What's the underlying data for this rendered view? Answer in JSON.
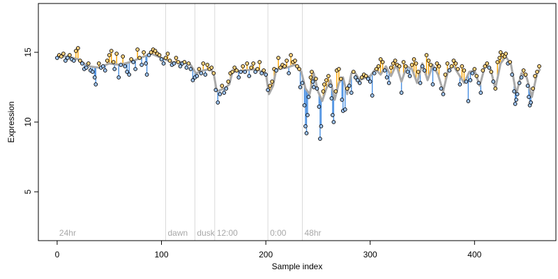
{
  "chart_data": {
    "type": "scatter",
    "title": "",
    "xlabel": "Sample index",
    "ylabel": "Expression",
    "xlim": [
      -18,
      478
    ],
    "ylim": [
      1.5,
      18.5
    ],
    "x_ticks": [
      0,
      100,
      200,
      300,
      400
    ],
    "y_ticks": [
      5,
      10,
      15
    ],
    "grid": false,
    "legend": "none",
    "colors": {
      "above_fit": "#ffa500",
      "below_fit": "#4a90e2",
      "fit_line": "#a9a9a9",
      "point_fill_above": "#ffd27f",
      "point_fill_below": "#9ec3f0",
      "point_edge": "#000000",
      "marker_line": "#d9d9d9",
      "marker_text": "#a8a8a8"
    },
    "markers": [
      {
        "x": 0,
        "label": "24hr",
        "line": false
      },
      {
        "x": 104,
        "label": "dawn",
        "line": true
      },
      {
        "x": 132,
        "label": "dusk",
        "line": true
      },
      {
        "x": 151,
        "label": "12:00",
        "line": true
      },
      {
        "x": 202,
        "label": "0:00",
        "line": true
      },
      {
        "x": 235,
        "label": "48hr",
        "line": true
      }
    ],
    "fit": [
      [
        0,
        14.7
      ],
      [
        10,
        14.7
      ],
      [
        20,
        14.5
      ],
      [
        30,
        14.0
      ],
      [
        40,
        13.9
      ],
      [
        50,
        14.2
      ],
      [
        60,
        14.1
      ],
      [
        70,
        14.3
      ],
      [
        80,
        14.6
      ],
      [
        90,
        14.9
      ],
      [
        100,
        14.6
      ],
      [
        110,
        14.3
      ],
      [
        120,
        14.3
      ],
      [
        128,
        14.1
      ],
      [
        133,
        13.5
      ],
      [
        140,
        13.7
      ],
      [
        147,
        13.8
      ],
      [
        150,
        13.5
      ],
      [
        153,
        12.2
      ],
      [
        160,
        12.4
      ],
      [
        165,
        12.7
      ],
      [
        168,
        13.6
      ],
      [
        180,
        13.7
      ],
      [
        190,
        13.8
      ],
      [
        200,
        13.5
      ],
      [
        203,
        12.0
      ],
      [
        207,
        12.6
      ],
      [
        210,
        13.8
      ],
      [
        220,
        13.9
      ],
      [
        228,
        14.1
      ],
      [
        234,
        13.6
      ],
      [
        238,
        12.4
      ],
      [
        242,
        12.0
      ],
      [
        246,
        13.5
      ],
      [
        250,
        12.2
      ],
      [
        254,
        11.5
      ],
      [
        258,
        12.4
      ],
      [
        262,
        13.0
      ],
      [
        266,
        11.6
      ],
      [
        270,
        12.8
      ],
      [
        274,
        13.2
      ],
      [
        278,
        12.0
      ],
      [
        282,
        13.5
      ],
      [
        285,
        13.6
      ],
      [
        290,
        13.0
      ],
      [
        296,
        13.2
      ],
      [
        300,
        13.3
      ],
      [
        305,
        13.8
      ],
      [
        310,
        13.4
      ],
      [
        315,
        14.0
      ],
      [
        320,
        13.3
      ],
      [
        325,
        14.1
      ],
      [
        330,
        12.9
      ],
      [
        335,
        14.0
      ],
      [
        340,
        13.8
      ],
      [
        345,
        12.8
      ],
      [
        350,
        14.2
      ],
      [
        355,
        13.0
      ],
      [
        360,
        14.1
      ],
      [
        365,
        13.4
      ],
      [
        370,
        12.2
      ],
      [
        375,
        13.8
      ],
      [
        380,
        14.0
      ],
      [
        385,
        13.4
      ],
      [
        390,
        12.8
      ],
      [
        395,
        13.6
      ],
      [
        400,
        13.7
      ],
      [
        405,
        12.6
      ],
      [
        410,
        14.0
      ],
      [
        415,
        13.9
      ],
      [
        420,
        12.4
      ],
      [
        425,
        14.2
      ],
      [
        430,
        14.7
      ],
      [
        435,
        14.1
      ],
      [
        440,
        12.0
      ],
      [
        445,
        13.5
      ],
      [
        450,
        13.2
      ],
      [
        455,
        11.8
      ],
      [
        460,
        13.5
      ],
      [
        463,
        13.8
      ]
    ],
    "points": [
      [
        0,
        14.6
      ],
      [
        2,
        14.8
      ],
      [
        4,
        14.7
      ],
      [
        6,
        14.9
      ],
      [
        8,
        14.4
      ],
      [
        10,
        14.6
      ],
      [
        12,
        14.8
      ],
      [
        14,
        14.5
      ],
      [
        16,
        14.4
      ],
      [
        18,
        15.1
      ],
      [
        20,
        15.3
      ],
      [
        22,
        14.4
      ],
      [
        24,
        14.2
      ],
      [
        26,
        13.8
      ],
      [
        28,
        13.9
      ],
      [
        30,
        14.2
      ],
      [
        32,
        13.7
      ],
      [
        34,
        13.6
      ],
      [
        36,
        13.2
      ],
      [
        37,
        12.7
      ],
      [
        40,
        14.2
      ],
      [
        42,
        13.9
      ],
      [
        44,
        14.0
      ],
      [
        46,
        13.7
      ],
      [
        48,
        14.4
      ],
      [
        50,
        14.8
      ],
      [
        52,
        15.1
      ],
      [
        54,
        14.3
      ],
      [
        55,
        13.8
      ],
      [
        57,
        14.9
      ],
      [
        59,
        13.2
      ],
      [
        61,
        14.1
      ],
      [
        63,
        14.7
      ],
      [
        65,
        14.0
      ],
      [
        67,
        13.6
      ],
      [
        69,
        13.4
      ],
      [
        71,
        14.5
      ],
      [
        73,
        14.3
      ],
      [
        75,
        13.8
      ],
      [
        77,
        15.2
      ],
      [
        79,
        14.6
      ],
      [
        81,
        14.1
      ],
      [
        83,
        15.0
      ],
      [
        85,
        14.2
      ],
      [
        86,
        13.4
      ],
      [
        88,
        14.8
      ],
      [
        90,
        15.0
      ],
      [
        92,
        15.2
      ],
      [
        94,
        15.1
      ],
      [
        96,
        14.9
      ],
      [
        98,
        14.8
      ],
      [
        100,
        14.5
      ],
      [
        102,
        14.2
      ],
      [
        104,
        14.6
      ],
      [
        106,
        14.9
      ],
      [
        108,
        14.4
      ],
      [
        110,
        14.1
      ],
      [
        112,
        14.2
      ],
      [
        114,
        14.6
      ],
      [
        116,
        14.3
      ],
      [
        118,
        14.0
      ],
      [
        120,
        14.2
      ],
      [
        122,
        14.3
      ],
      [
        124,
        13.9
      ],
      [
        126,
        14.2
      ],
      [
        128,
        13.8
      ],
      [
        130,
        13.0
      ],
      [
        132,
        13.2
      ],
      [
        134,
        13.3
      ],
      [
        136,
        13.8
      ],
      [
        138,
        13.5
      ],
      [
        140,
        14.2
      ],
      [
        142,
        13.4
      ],
      [
        144,
        14.1
      ],
      [
        146,
        13.8
      ],
      [
        148,
        13.9
      ],
      [
        150,
        13.5
      ],
      [
        152,
        12.3
      ],
      [
        154,
        11.4
      ],
      [
        156,
        12.0
      ],
      [
        158,
        12.6
      ],
      [
        160,
        12.1
      ],
      [
        162,
        12.4
      ],
      [
        164,
        12.9
      ],
      [
        166,
        13.5
      ],
      [
        168,
        13.6
      ],
      [
        170,
        13.9
      ],
      [
        172,
        13.7
      ],
      [
        174,
        13.2
      ],
      [
        176,
        13.6
      ],
      [
        178,
        14.0
      ],
      [
        180,
        13.6
      ],
      [
        182,
        14.2
      ],
      [
        184,
        13.3
      ],
      [
        186,
        13.9
      ],
      [
        188,
        14.2
      ],
      [
        190,
        13.6
      ],
      [
        192,
        13.8
      ],
      [
        194,
        14.3
      ],
      [
        196,
        13.5
      ],
      [
        198,
        13.7
      ],
      [
        200,
        13.4
      ],
      [
        202,
        12.3
      ],
      [
        204,
        12.6
      ],
      [
        206,
        12.9
      ],
      [
        208,
        13.8
      ],
      [
        210,
        13.7
      ],
      [
        212,
        14.6
      ],
      [
        214,
        13.9
      ],
      [
        216,
        14.1
      ],
      [
        218,
        14.0
      ],
      [
        220,
        14.4
      ],
      [
        222,
        13.5
      ],
      [
        224,
        14.8
      ],
      [
        226,
        14.3
      ],
      [
        228,
        14.4
      ],
      [
        230,
        14.0
      ],
      [
        232,
        13.8
      ],
      [
        233,
        12.5
      ],
      [
        235,
        12.8
      ],
      [
        237,
        11.2
      ],
      [
        238,
        9.7
      ],
      [
        239,
        9.2
      ],
      [
        240,
        10.5
      ],
      [
        241,
        11.8
      ],
      [
        243,
        13.2
      ],
      [
        244,
        13.6
      ],
      [
        245,
        12.9
      ],
      [
        246,
        12.5
      ],
      [
        248,
        13.1
      ],
      [
        249,
        12.4
      ],
      [
        251,
        11.1
      ],
      [
        252,
        8.8
      ],
      [
        253,
        9.7
      ],
      [
        255,
        12.2
      ],
      [
        256,
        12.7
      ],
      [
        258,
        13.0
      ],
      [
        260,
        13.3
      ],
      [
        262,
        12.6
      ],
      [
        263,
        11.7
      ],
      [
        264,
        10.5
      ],
      [
        265,
        10.0
      ],
      [
        267,
        12.2
      ],
      [
        268,
        13.7
      ],
      [
        270,
        13.8
      ],
      [
        272,
        13.1
      ],
      [
        273,
        11.6
      ],
      [
        274,
        10.8
      ],
      [
        276,
        10.9
      ],
      [
        278,
        12.4
      ],
      [
        280,
        12.6
      ],
      [
        282,
        12.1
      ],
      [
        284,
        13.6
      ],
      [
        286,
        13.2
      ],
      [
        288,
        13.0
      ],
      [
        290,
        12.8
      ],
      [
        292,
        13.2
      ],
      [
        294,
        13.4
      ],
      [
        296,
        13.3
      ],
      [
        298,
        13.1
      ],
      [
        300,
        12.9
      ],
      [
        302,
        11.9
      ],
      [
        304,
        13.5
      ],
      [
        306,
        13.8
      ],
      [
        308,
        14.0
      ],
      [
        310,
        14.5
      ],
      [
        312,
        14.3
      ],
      [
        314,
        13.7
      ],
      [
        316,
        13.2
      ],
      [
        318,
        12.8
      ],
      [
        320,
        13.9
      ],
      [
        322,
        14.2
      ],
      [
        324,
        14.4
      ],
      [
        326,
        14.1
      ],
      [
        328,
        14.0
      ],
      [
        330,
        12.1
      ],
      [
        332,
        14.3
      ],
      [
        334,
        14.0
      ],
      [
        336,
        13.6
      ],
      [
        338,
        13.3
      ],
      [
        340,
        14.1
      ],
      [
        342,
        14.5
      ],
      [
        344,
        14.2
      ],
      [
        346,
        13.6
      ],
      [
        348,
        12.8
      ],
      [
        350,
        14.0
      ],
      [
        352,
        13.7
      ],
      [
        354,
        14.8
      ],
      [
        356,
        14.4
      ],
      [
        358,
        14.1
      ],
      [
        360,
        12.7
      ],
      [
        362,
        13.8
      ],
      [
        364,
        14.2
      ],
      [
        366,
        14.0
      ],
      [
        368,
        12.4
      ],
      [
        370,
        12.0
      ],
      [
        372,
        13.4
      ],
      [
        374,
        14.2
      ],
      [
        376,
        13.7
      ],
      [
        378,
        14.0
      ],
      [
        380,
        14.4
      ],
      [
        382,
        14.2
      ],
      [
        384,
        13.8
      ],
      [
        386,
        12.7
      ],
      [
        388,
        14.0
      ],
      [
        390,
        13.7
      ],
      [
        392,
        12.9
      ],
      [
        394,
        11.5
      ],
      [
        396,
        13.0
      ],
      [
        398,
        13.5
      ],
      [
        400,
        13.8
      ],
      [
        402,
        13.3
      ],
      [
        404,
        12.8
      ],
      [
        406,
        12.1
      ],
      [
        408,
        13.7
      ],
      [
        410,
        14.0
      ],
      [
        412,
        14.2
      ],
      [
        414,
        13.9
      ],
      [
        416,
        13.6
      ],
      [
        418,
        12.9
      ],
      [
        420,
        12.4
      ],
      [
        422,
        14.3
      ],
      [
        424,
        14.6
      ],
      [
        425,
        15.0
      ],
      [
        427,
        14.8
      ],
      [
        429,
        14.7
      ],
      [
        430,
        14.9
      ],
      [
        432,
        14.2
      ],
      [
        434,
        14.3
      ],
      [
        436,
        13.4
      ],
      [
        438,
        12.2
      ],
      [
        439,
        11.3
      ],
      [
        440,
        11.6
      ],
      [
        441,
        12.0
      ],
      [
        443,
        12.8
      ],
      [
        445,
        13.2
      ],
      [
        447,
        13.7
      ],
      [
        449,
        13.4
      ],
      [
        451,
        12.6
      ],
      [
        452,
        11.8
      ],
      [
        453,
        11.2
      ],
      [
        454,
        11.4
      ],
      [
        456,
        12.4
      ],
      [
        458,
        13.3
      ],
      [
        460,
        13.6
      ],
      [
        462,
        14.0
      ]
    ]
  }
}
